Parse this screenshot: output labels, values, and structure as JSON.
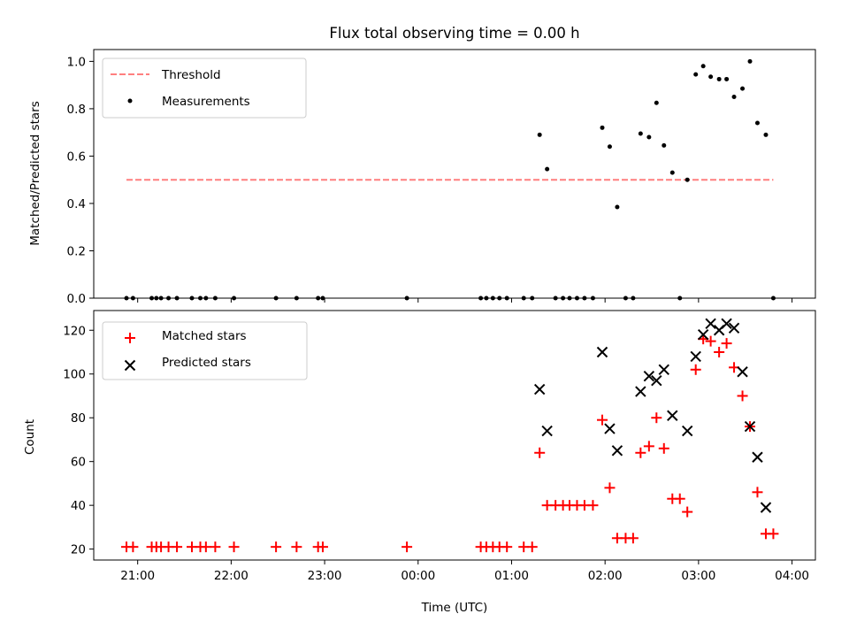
{
  "chart_data": [
    {
      "type": "scatter",
      "title": "Flux total observing time = 0.00 h",
      "xlabel": "",
      "ylabel": "Matched/Predicted stars",
      "xlim": [
        20.53,
        28.25
      ],
      "ylim": [
        0.0,
        1.05
      ],
      "x_ticks": [
        21,
        22,
        23,
        24,
        25,
        26,
        27,
        28
      ],
      "x_tick_labels": [
        "",
        "",
        "",
        "",
        "",
        "",
        "",
        ""
      ],
      "y_ticks": [
        0.0,
        0.2,
        0.4,
        0.6,
        0.8,
        1.0
      ],
      "y_tick_labels": [
        "0.0",
        "0.2",
        "0.4",
        "0.6",
        "0.8",
        "1.0"
      ],
      "grid": false,
      "legend": {
        "placement": "top-left"
      },
      "threshold": {
        "name": "Threshold",
        "value": 0.5,
        "x_range": [
          20.88,
          27.8
        ],
        "color": "#ff7f7f",
        "style": "dashed"
      },
      "series": [
        {
          "name": "Measurements",
          "marker": "dot",
          "color": "#000000",
          "points": [
            [
              20.88,
              0.0
            ],
            [
              20.95,
              0.0
            ],
            [
              21.15,
              0.0
            ],
            [
              21.2,
              0.0
            ],
            [
              21.25,
              0.0
            ],
            [
              21.33,
              0.0
            ],
            [
              21.42,
              0.0
            ],
            [
              21.58,
              0.0
            ],
            [
              21.67,
              0.0
            ],
            [
              21.73,
              0.0
            ],
            [
              21.83,
              0.0
            ],
            [
              22.03,
              0.0
            ],
            [
              22.48,
              0.0
            ],
            [
              22.7,
              0.0
            ],
            [
              22.93,
              0.0
            ],
            [
              22.98,
              0.0
            ],
            [
              23.88,
              0.0
            ],
            [
              24.67,
              0.0
            ],
            [
              24.73,
              0.0
            ],
            [
              24.8,
              0.0
            ],
            [
              24.87,
              0.0
            ],
            [
              24.95,
              0.0
            ],
            [
              25.13,
              0.0
            ],
            [
              25.22,
              0.0
            ],
            [
              25.3,
              0.69
            ],
            [
              25.38,
              0.545
            ],
            [
              25.47,
              0.0
            ],
            [
              25.55,
              0.0
            ],
            [
              25.62,
              0.0
            ],
            [
              25.7,
              0.0
            ],
            [
              25.78,
              0.0
            ],
            [
              25.87,
              0.0
            ],
            [
              25.97,
              0.72
            ],
            [
              26.05,
              0.64
            ],
            [
              26.13,
              0.385
            ],
            [
              26.22,
              0.0
            ],
            [
              26.3,
              0.0
            ],
            [
              26.38,
              0.695
            ],
            [
              26.47,
              0.68
            ],
            [
              26.55,
              0.825
            ],
            [
              26.63,
              0.645
            ],
            [
              26.72,
              0.53
            ],
            [
              26.8,
              0.0
            ],
            [
              26.88,
              0.5
            ],
            [
              26.97,
              0.945
            ],
            [
              27.05,
              0.98
            ],
            [
              27.13,
              0.935
            ],
            [
              27.22,
              0.925
            ],
            [
              27.3,
              0.925
            ],
            [
              27.38,
              0.85
            ],
            [
              27.47,
              0.885
            ],
            [
              27.55,
              1.0
            ],
            [
              27.63,
              0.74
            ],
            [
              27.72,
              0.69
            ],
            [
              27.8,
              0.0
            ]
          ]
        }
      ]
    },
    {
      "type": "scatter",
      "title": "",
      "xlabel": "Time (UTC)",
      "ylabel": "Count",
      "xlim": [
        20.53,
        28.25
      ],
      "ylim": [
        15.0,
        129.0
      ],
      "x_ticks": [
        21,
        22,
        23,
        24,
        25,
        26,
        27,
        28
      ],
      "x_tick_labels": [
        "21:00",
        "22:00",
        "23:00",
        "00:00",
        "01:00",
        "02:00",
        "03:00",
        "04:00"
      ],
      "y_ticks": [
        20,
        40,
        60,
        80,
        100,
        120
      ],
      "y_tick_labels": [
        "20",
        "40",
        "60",
        "80",
        "100",
        "120"
      ],
      "grid": false,
      "legend": {
        "placement": "top-left"
      },
      "series": [
        {
          "name": "Matched stars",
          "marker": "plus",
          "color": "#ff0000",
          "points": [
            [
              20.88,
              21
            ],
            [
              20.95,
              21
            ],
            [
              21.15,
              21
            ],
            [
              21.2,
              21
            ],
            [
              21.25,
              21
            ],
            [
              21.33,
              21
            ],
            [
              21.42,
              21
            ],
            [
              21.58,
              21
            ],
            [
              21.67,
              21
            ],
            [
              21.73,
              21
            ],
            [
              21.83,
              21
            ],
            [
              22.03,
              21
            ],
            [
              22.48,
              21
            ],
            [
              22.7,
              21
            ],
            [
              22.93,
              21
            ],
            [
              22.98,
              21
            ],
            [
              23.88,
              21
            ],
            [
              24.67,
              21
            ],
            [
              24.73,
              21
            ],
            [
              24.8,
              21
            ],
            [
              24.87,
              21
            ],
            [
              24.95,
              21
            ],
            [
              25.13,
              21
            ],
            [
              25.22,
              21
            ],
            [
              25.3,
              64
            ],
            [
              25.38,
              40
            ],
            [
              25.47,
              40
            ],
            [
              25.55,
              40
            ],
            [
              25.62,
              40
            ],
            [
              25.7,
              40
            ],
            [
              25.78,
              40
            ],
            [
              25.87,
              40
            ],
            [
              25.97,
              79
            ],
            [
              26.05,
              48
            ],
            [
              26.13,
              25
            ],
            [
              26.22,
              25
            ],
            [
              26.3,
              25
            ],
            [
              26.38,
              64
            ],
            [
              26.47,
              67
            ],
            [
              26.55,
              80
            ],
            [
              26.63,
              66
            ],
            [
              26.72,
              43
            ],
            [
              26.8,
              43
            ],
            [
              26.88,
              37
            ],
            [
              26.97,
              102
            ],
            [
              27.05,
              116
            ],
            [
              27.13,
              115
            ],
            [
              27.22,
              110
            ],
            [
              27.3,
              114
            ],
            [
              27.38,
              103
            ],
            [
              27.47,
              90
            ],
            [
              27.55,
              76
            ],
            [
              27.63,
              46
            ],
            [
              27.72,
              27
            ],
            [
              27.8,
              27
            ]
          ]
        },
        {
          "name": "Predicted stars",
          "marker": "x",
          "color": "#000000",
          "points": [
            [
              25.3,
              93
            ],
            [
              25.38,
              74
            ],
            [
              25.97,
              110
            ],
            [
              26.05,
              75
            ],
            [
              26.13,
              65
            ],
            [
              26.38,
              92
            ],
            [
              26.47,
              99
            ],
            [
              26.55,
              97
            ],
            [
              26.63,
              102
            ],
            [
              26.72,
              81
            ],
            [
              26.88,
              74
            ],
            [
              26.97,
              108
            ],
            [
              27.05,
              118
            ],
            [
              27.13,
              123
            ],
            [
              27.22,
              120
            ],
            [
              27.3,
              123
            ],
            [
              27.38,
              121
            ],
            [
              27.47,
              101
            ],
            [
              27.55,
              76
            ],
            [
              27.63,
              62
            ],
            [
              27.72,
              39
            ]
          ]
        }
      ]
    }
  ]
}
